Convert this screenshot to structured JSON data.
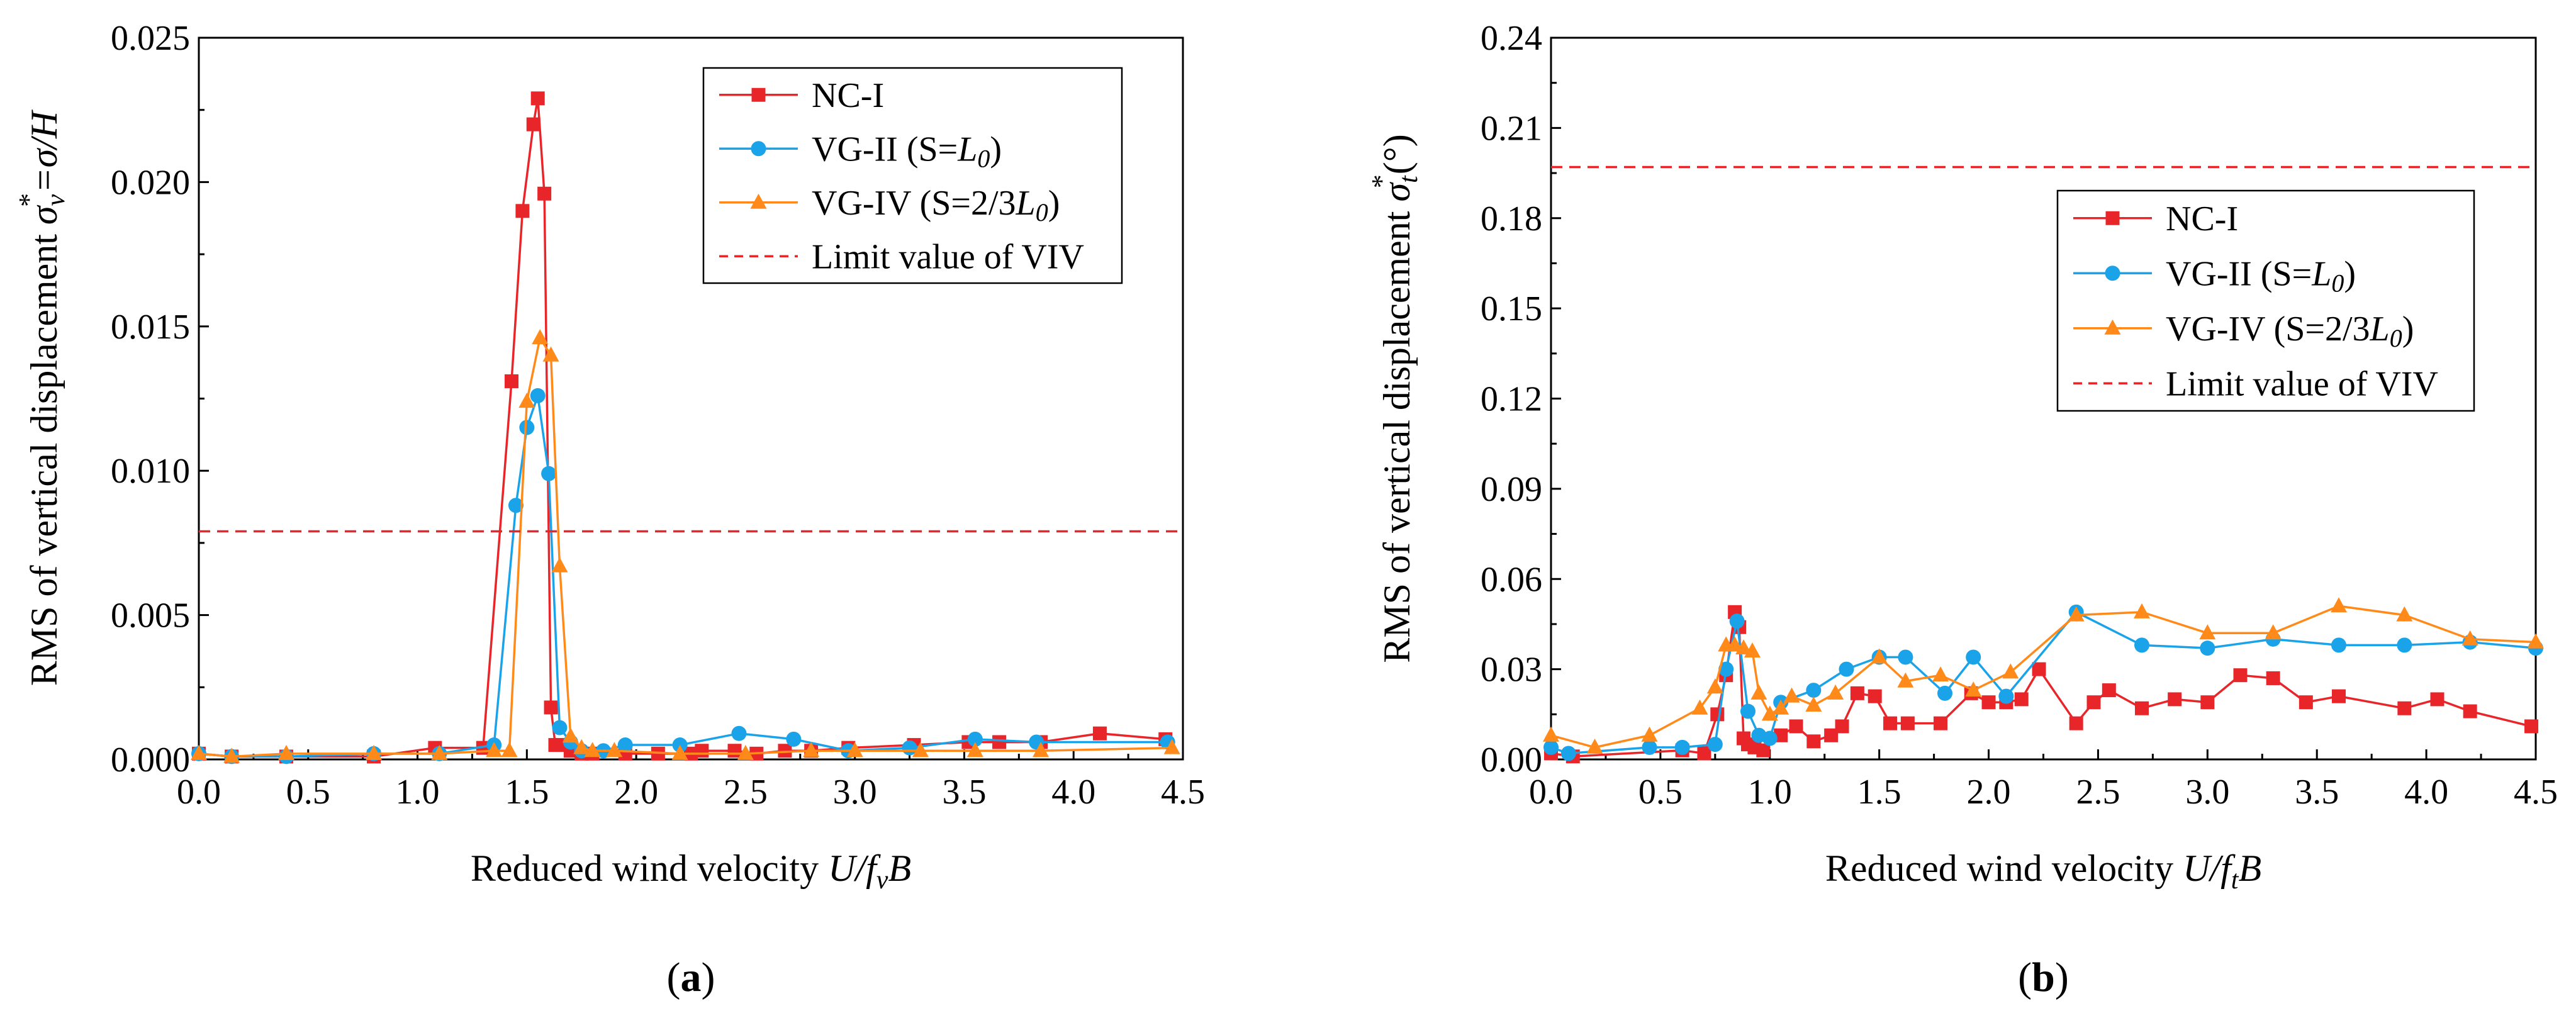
{
  "colors": {
    "NC-I": "#e8262a",
    "VG-II": "#1aa3e8",
    "VG-IV": "#ff8a1a",
    "limit": "#e8262a",
    "axis": "#000000"
  },
  "figure": {
    "panels": [
      "(a)",
      "(b)"
    ]
  },
  "chart_data": [
    {
      "type": "line",
      "panel_label": "(a)",
      "xlabel": "Reduced wind velocity U/f_vB",
      "xlabel_parts": {
        "pre": "Reduced wind velocity ",
        "var1": "U",
        "sep": "/",
        "var2": "f",
        "sub": "v",
        "var3": "B"
      },
      "ylabel": "RMS of vertical displacement σ_v* = σ/H",
      "ylabel_parts": {
        "pre": "RMS of vertical displacement ",
        "sym": "σ",
        "sub": "v",
        "sup": "*",
        "post": "=σ/H"
      },
      "xlim": [
        0,
        4.5
      ],
      "ylim": [
        0,
        0.025
      ],
      "xticks": [
        "0.0",
        "0.5",
        "1.0",
        "1.5",
        "2.0",
        "2.5",
        "3.0",
        "3.5",
        "4.0",
        "4.5"
      ],
      "yticks": [
        "0.000",
        "0.005",
        "0.010",
        "0.015",
        "0.020",
        "0.025"
      ],
      "grid": false,
      "legend_position": "top-right",
      "series": [
        {
          "name": "NC-I",
          "marker": "square",
          "x": [
            0.0,
            0.15,
            0.4,
            0.8,
            1.08,
            1.3,
            1.43,
            1.48,
            1.53,
            1.55,
            1.58,
            1.61,
            1.63,
            1.66,
            1.7,
            1.75,
            1.8,
            1.95,
            2.1,
            2.25,
            2.3,
            2.45,
            2.55,
            2.68,
            2.8,
            2.97,
            3.27,
            3.52,
            3.66,
            3.85,
            4.12,
            4.42
          ],
          "y": [
            0.0002,
            0.0001,
            0.0001,
            0.0001,
            0.0004,
            0.0004,
            0.0131,
            0.019,
            0.022,
            0.0229,
            0.0196,
            0.0018,
            0.0005,
            0.0005,
            0.0003,
            0.0002,
            0.0002,
            0.0002,
            0.0002,
            0.0002,
            0.0003,
            0.0003,
            0.0002,
            0.0003,
            0.0003,
            0.0004,
            0.0005,
            0.0006,
            0.0006,
            0.0006,
            0.0009,
            0.0007
          ]
        },
        {
          "name": "VG-II (S=L0)",
          "marker": "circle",
          "x": [
            0.0,
            0.15,
            0.4,
            0.8,
            1.1,
            1.35,
            1.45,
            1.5,
            1.55,
            1.6,
            1.65,
            1.7,
            1.75,
            1.85,
            1.95,
            2.2,
            2.47,
            2.72,
            2.97,
            3.25,
            3.55,
            3.83,
            4.43
          ],
          "y": [
            0.0002,
            0.0001,
            0.0001,
            0.0002,
            0.0002,
            0.0005,
            0.0088,
            0.0115,
            0.0126,
            0.0099,
            0.0011,
            0.0006,
            0.0003,
            0.0003,
            0.0005,
            0.0005,
            0.0009,
            0.0007,
            0.0003,
            0.0004,
            0.0007,
            0.0006,
            0.0006
          ]
        },
        {
          "name": "VG-IV (S=2/3L0)",
          "marker": "triangle",
          "x": [
            0.0,
            0.15,
            0.4,
            0.8,
            1.1,
            1.35,
            1.42,
            1.5,
            1.56,
            1.61,
            1.65,
            1.7,
            1.75,
            1.8,
            1.9,
            2.2,
            2.5,
            2.8,
            3.0,
            3.3,
            3.55,
            3.85,
            4.45
          ],
          "y": [
            0.0002,
            0.0001,
            0.0002,
            0.0002,
            0.0002,
            0.0003,
            0.0003,
            0.0124,
            0.0146,
            0.014,
            0.0067,
            0.0008,
            0.0004,
            0.0003,
            0.0003,
            0.0002,
            0.0002,
            0.0003,
            0.0003,
            0.0003,
            0.0003,
            0.0003,
            0.0004
          ]
        },
        {
          "name": "Limit value of VIV",
          "style": "dashed",
          "x": [
            0,
            4.5
          ],
          "y": [
            0.0079,
            0.0079
          ]
        }
      ]
    },
    {
      "type": "line",
      "panel_label": "(b)",
      "xlabel": "Reduced wind velocity U/f_tB",
      "xlabel_parts": {
        "pre": "Reduced wind velocity ",
        "var1": "U",
        "sep": "/",
        "var2": "f",
        "sub": "t",
        "var3": "B"
      },
      "ylabel": "RMS of vertical displacement σ_t* (°)",
      "ylabel_parts": {
        "pre": "RMS of vertical displacement ",
        "sym": "σ",
        "sub": "t",
        "sup": "*",
        "post": "(°)"
      },
      "xlim": [
        0,
        4.5
      ],
      "ylim": [
        0,
        0.24
      ],
      "xticks": [
        "0.0",
        "0.5",
        "1.0",
        "1.5",
        "2.0",
        "2.5",
        "3.0",
        "3.5",
        "4.0",
        "4.5"
      ],
      "yticks": [
        "0.00",
        "0.03",
        "0.06",
        "0.09",
        "0.12",
        "0.15",
        "0.18",
        "0.21",
        "0.24"
      ],
      "grid": false,
      "legend_position": "top-right",
      "series": [
        {
          "name": "NC-I",
          "marker": "square",
          "x": [
            0.0,
            0.1,
            0.6,
            0.7,
            0.76,
            0.8,
            0.84,
            0.86,
            0.88,
            0.9,
            0.93,
            0.97,
            1.05,
            1.12,
            1.2,
            1.28,
            1.33,
            1.4,
            1.48,
            1.55,
            1.63,
            1.78,
            1.92,
            2.0,
            2.08,
            2.15,
            2.23,
            2.4,
            2.48,
            2.55,
            2.7,
            2.85,
            3.0,
            3.15,
            3.3,
            3.45,
            3.6,
            3.9,
            4.05,
            4.2,
            4.48
          ],
          "y": [
            0.002,
            0.001,
            0.003,
            0.002,
            0.015,
            0.028,
            0.049,
            0.044,
            0.007,
            0.005,
            0.004,
            0.003,
            0.008,
            0.011,
            0.006,
            0.008,
            0.011,
            0.022,
            0.021,
            0.012,
            0.012,
            0.012,
            0.022,
            0.019,
            0.019,
            0.02,
            0.03,
            0.012,
            0.019,
            0.023,
            0.017,
            0.02,
            0.019,
            0.028,
            0.027,
            0.019,
            0.021,
            0.017,
            0.02,
            0.016,
            0.011
          ]
        },
        {
          "name": "VG-II (S=L0)",
          "marker": "circle",
          "x": [
            0.0,
            0.08,
            0.45,
            0.6,
            0.75,
            0.8,
            0.85,
            0.9,
            0.95,
            1.0,
            1.05,
            1.2,
            1.35,
            1.5,
            1.62,
            1.8,
            1.93,
            2.08,
            2.4,
            2.7,
            3.0,
            3.3,
            3.6,
            3.9,
            4.2,
            4.5
          ],
          "y": [
            0.004,
            0.002,
            0.004,
            0.004,
            0.005,
            0.03,
            0.046,
            0.016,
            0.008,
            0.007,
            0.019,
            0.023,
            0.03,
            0.034,
            0.034,
            0.022,
            0.034,
            0.021,
            0.049,
            0.038,
            0.037,
            0.04,
            0.038,
            0.038,
            0.039,
            0.037
          ]
        },
        {
          "name": "VG-IV (S=2/3L0)",
          "marker": "triangle",
          "x": [
            0.0,
            0.2,
            0.45,
            0.68,
            0.75,
            0.8,
            0.84,
            0.88,
            0.92,
            0.95,
            1.0,
            1.05,
            1.1,
            1.2,
            1.3,
            1.5,
            1.62,
            1.78,
            1.93,
            2.1,
            2.4,
            2.7,
            3.0,
            3.3,
            3.6,
            3.9,
            4.2,
            4.5
          ],
          "y": [
            0.008,
            0.004,
            0.008,
            0.017,
            0.024,
            0.038,
            0.038,
            0.037,
            0.036,
            0.022,
            0.015,
            0.017,
            0.021,
            0.018,
            0.022,
            0.034,
            0.026,
            0.028,
            0.023,
            0.029,
            0.048,
            0.049,
            0.042,
            0.042,
            0.051,
            0.048,
            0.04,
            0.039
          ]
        },
        {
          "name": "Limit value of VIV",
          "style": "dashed",
          "x": [
            0,
            4.5
          ],
          "y": [
            0.197,
            0.197
          ]
        }
      ]
    }
  ]
}
